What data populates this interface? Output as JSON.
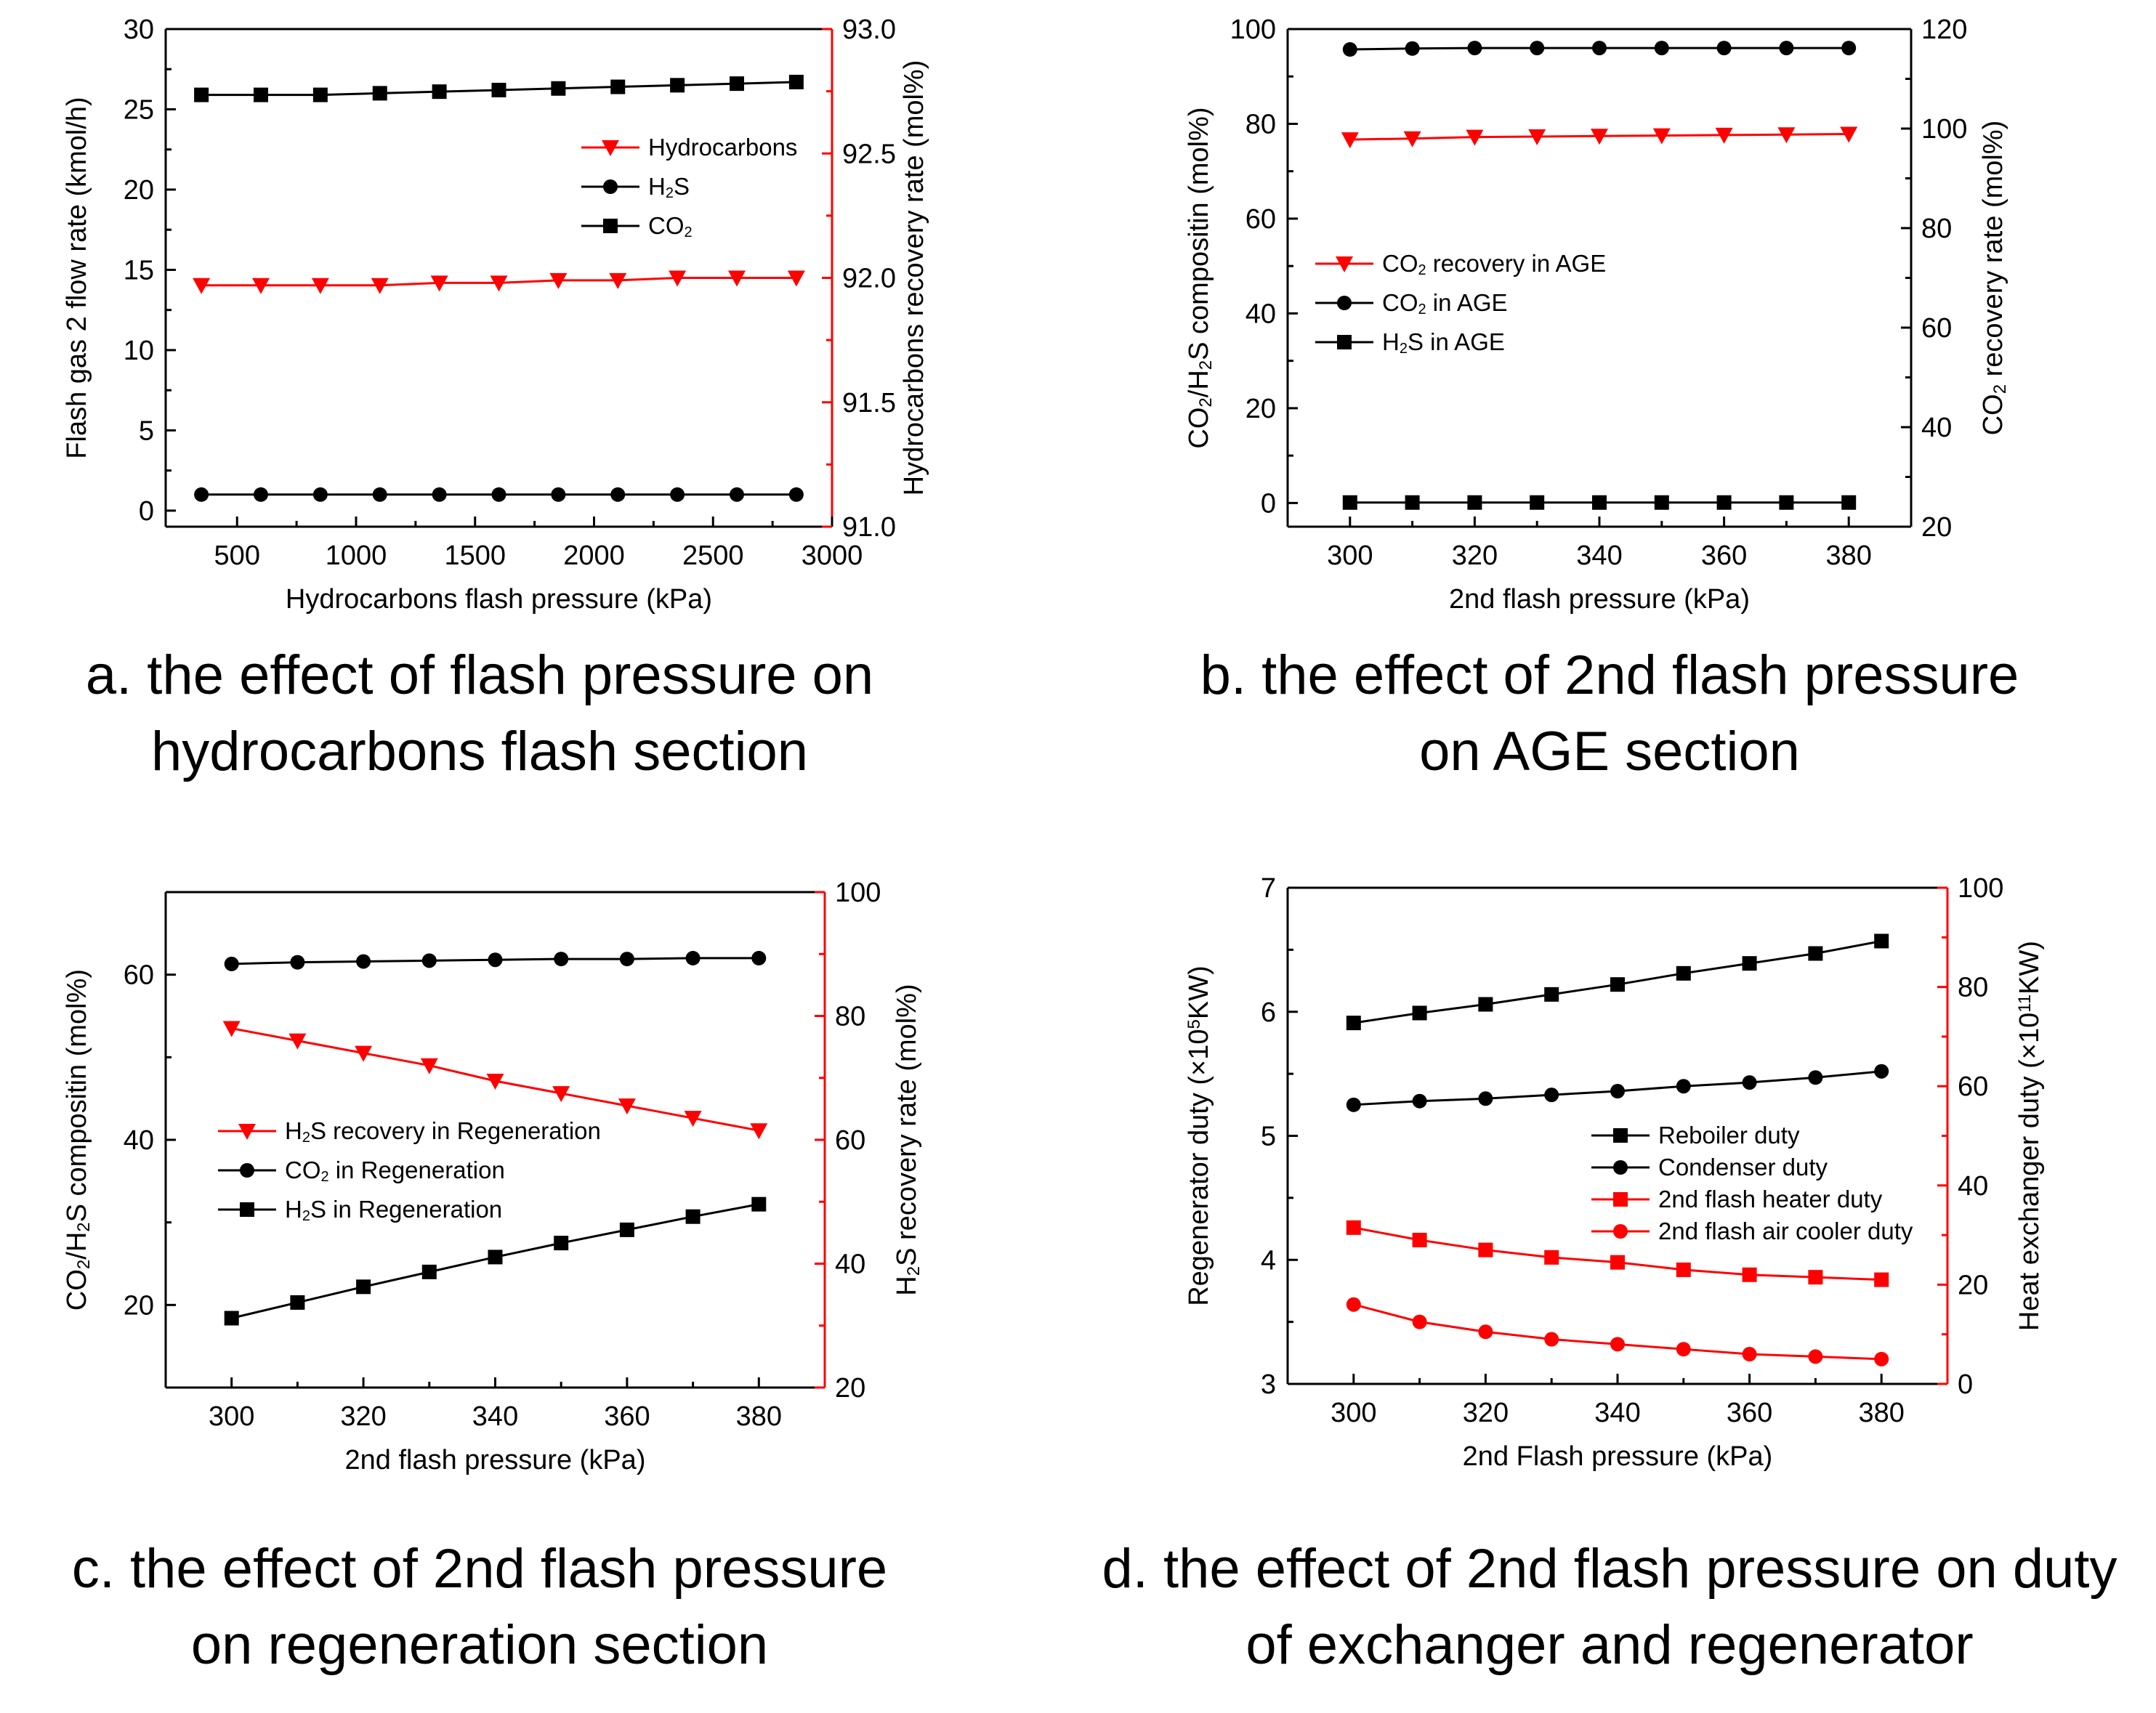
{
  "chart_data": [
    {
      "id": "a",
      "type": "line",
      "title": "",
      "caption_lines": [
        "a. the effect of flash pressure on",
        "hydrocarbons flash section"
      ],
      "xlabel": "Hydrocarbons flash pressure (kPa)",
      "ylabel_left": "Flash gas 2 flow rate (kmol/h)",
      "ylabel_right": "Hydrocarbons recovery rate (mol%)",
      "xlim": [
        200,
        3000
      ],
      "xticks": [
        500,
        1000,
        1500,
        2000,
        2500,
        3000
      ],
      "ylim_left": [
        -1,
        30
      ],
      "yticks_left": [
        0,
        5,
        10,
        15,
        20,
        25,
        30
      ],
      "ylim_right": [
        91.0,
        93.0
      ],
      "yticks_right": [
        "91.0",
        "91.5",
        "92.0",
        "92.5",
        "93.0"
      ],
      "x": [
        350,
        600,
        850,
        1100,
        1350,
        1600,
        1850,
        2100,
        2350,
        2600,
        2850
      ],
      "series": [
        {
          "name": "Hydrocarbons",
          "axis": "right",
          "color": "#ff0000",
          "marker": "triangle-down",
          "values": [
            91.97,
            91.97,
            91.97,
            91.97,
            91.98,
            91.98,
            91.99,
            91.99,
            92.0,
            92.0,
            92.0
          ]
        },
        {
          "name": "H₂S",
          "axis": "left",
          "color": "#000000",
          "marker": "circle",
          "values": [
            1.0,
            1.0,
            1.0,
            1.0,
            1.0,
            1.0,
            1.0,
            1.0,
            1.0,
            1.0,
            1.0
          ]
        },
        {
          "name": "CO₂",
          "axis": "left",
          "color": "#000000",
          "marker": "square",
          "values": [
            25.9,
            25.9,
            25.9,
            26.0,
            26.1,
            26.2,
            26.3,
            26.4,
            26.5,
            26.6,
            26.7
          ]
        }
      ],
      "legend": [
        "Hydrocarbons",
        "H₂S",
        "CO₂"
      ]
    },
    {
      "id": "b",
      "type": "line",
      "title": "",
      "caption_lines": [
        "b. the effect of 2nd flash pressure",
        "on AGE section"
      ],
      "xlabel": "2nd flash pressure (kPa)",
      "ylabel_left": "CO₂/H₂S compositin (mol%)",
      "ylabel_right": "CO₂ recovery rate (mol%)",
      "xlim": [
        290,
        390
      ],
      "xticks": [
        300,
        320,
        340,
        360,
        380
      ],
      "ylim_left": [
        -5,
        100
      ],
      "yticks_left": [
        0,
        20,
        40,
        60,
        80,
        100
      ],
      "ylim_right": [
        20,
        120
      ],
      "yticks_right": [
        "20",
        "40",
        "60",
        "80",
        "100",
        "120"
      ],
      "x": [
        300,
        310,
        320,
        330,
        340,
        350,
        360,
        370,
        380
      ],
      "series": [
        {
          "name": "CO₂ recovery in AGE",
          "axis": "right",
          "color": "#ff0000",
          "marker": "triangle-down",
          "values": [
            97.8,
            98.0,
            98.3,
            98.4,
            98.5,
            98.6,
            98.7,
            98.8,
            98.9
          ]
        },
        {
          "name": "CO₂ in AGE",
          "axis": "left",
          "color": "#000000",
          "marker": "circle",
          "values": [
            95.7,
            95.9,
            96.0,
            96.0,
            96.0,
            96.0,
            96.0,
            96.0,
            96.0
          ]
        },
        {
          "name": "H₂S in AGE",
          "axis": "left",
          "color": "#000000",
          "marker": "square",
          "values": [
            0.1,
            0.1,
            0.1,
            0.1,
            0.1,
            0.1,
            0.1,
            0.1,
            0.1
          ]
        }
      ],
      "legend": [
        "CO₂ recovery in AGE",
        "CO₂ in AGE",
        "H₂S in AGE"
      ]
    },
    {
      "id": "c",
      "type": "line",
      "title": "",
      "caption_lines": [
        "c. the effect of 2nd flash pressure",
        "on regeneration section"
      ],
      "xlabel": "2nd flash pressure (kPa)",
      "ylabel_left": "CO₂/H₂S compositin (mol%)",
      "ylabel_right": "H₂S recovery rate (mol%)",
      "xlim": [
        290,
        390
      ],
      "xticks": [
        300,
        320,
        340,
        360,
        380
      ],
      "ylim_left": [
        10,
        70
      ],
      "yticks_left": [
        20,
        40,
        60
      ],
      "ylim_right": [
        20,
        100
      ],
      "yticks_right": [
        "20",
        "40",
        "60",
        "80",
        "100"
      ],
      "x": [
        300,
        310,
        320,
        330,
        340,
        350,
        360,
        370,
        380
      ],
      "series": [
        {
          "name": "H₂S recovery in Regeneration",
          "axis": "right",
          "color": "#ff0000",
          "marker": "triangle-down",
          "values": [
            78.0,
            76.0,
            74.0,
            72.0,
            69.5,
            67.5,
            65.5,
            63.5,
            61.5
          ]
        },
        {
          "name": "CO₂ in Regeneration",
          "axis": "left",
          "color": "#000000",
          "marker": "circle",
          "values": [
            61.3,
            61.5,
            61.6,
            61.7,
            61.8,
            61.9,
            61.9,
            62.0,
            62.0
          ]
        },
        {
          "name": "H₂S in Regeneration",
          "axis": "left",
          "color": "#000000",
          "marker": "square",
          "values": [
            18.4,
            20.3,
            22.2,
            24.0,
            25.8,
            27.5,
            29.1,
            30.7,
            32.2
          ]
        }
      ],
      "legend": [
        "H₂S recovery in Regeneration",
        "CO₂ in Regeneration",
        "H₂S in Regeneration"
      ]
    },
    {
      "id": "d",
      "type": "line",
      "title": "",
      "caption_lines": [
        "d. the effect of 2nd flash pressure on duty",
        "of exchanger and regenerator"
      ],
      "xlabel": "2nd Flash pressure (kPa)",
      "ylabel_left": "Regenerator duty (×10⁵KW)",
      "ylabel_right": "Heat exchanger duty (×10¹¹KW)",
      "xlim": [
        290,
        390
      ],
      "xticks": [
        300,
        320,
        340,
        360,
        380
      ],
      "ylim_left": [
        3,
        7
      ],
      "yticks_left": [
        3,
        4,
        5,
        6,
        7
      ],
      "ylim_right": [
        0,
        100
      ],
      "yticks_right": [
        "0",
        "20",
        "40",
        "60",
        "80",
        "100"
      ],
      "x": [
        300,
        310,
        320,
        330,
        340,
        350,
        360,
        370,
        380
      ],
      "series": [
        {
          "name": "Reboiler duty",
          "axis": "left",
          "color": "#000000",
          "marker": "square",
          "values": [
            5.91,
            5.99,
            6.06,
            6.14,
            6.22,
            6.31,
            6.39,
            6.47,
            6.57
          ]
        },
        {
          "name": "Condenser duty",
          "axis": "left",
          "color": "#000000",
          "marker": "circle",
          "values": [
            5.25,
            5.28,
            5.3,
            5.33,
            5.36,
            5.4,
            5.43,
            5.47,
            5.52
          ]
        },
        {
          "name": "2nd flash heater duty",
          "axis": "right",
          "color": "#ff0000",
          "marker": "square",
          "values": [
            31.5,
            29.0,
            27.0,
            25.5,
            24.5,
            23.0,
            22.0,
            21.5,
            21.0
          ]
        },
        {
          "name": "2nd flash air cooler duty",
          "axis": "right",
          "color": "#ff0000",
          "marker": "circle",
          "values": [
            16.0,
            12.5,
            10.5,
            9.0,
            8.0,
            7.0,
            6.0,
            5.5,
            5.0
          ]
        }
      ],
      "legend": [
        "Reboiler duty",
        "Condenser duty",
        "2nd flash heater duty",
        "2nd flash air cooler duty"
      ]
    }
  ]
}
